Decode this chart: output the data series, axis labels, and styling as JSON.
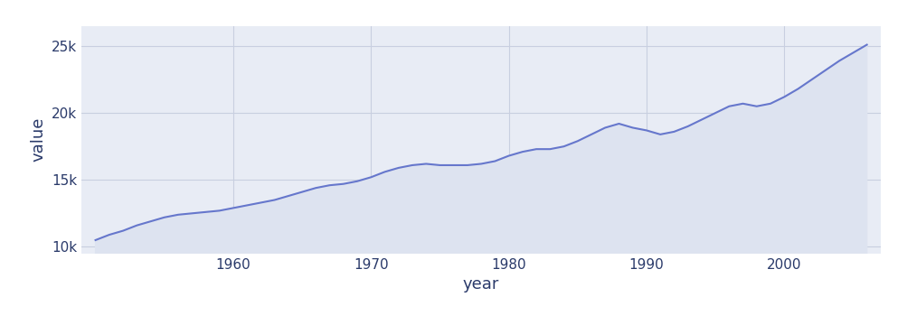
{
  "years": [
    1950,
    1951,
    1952,
    1953,
    1954,
    1955,
    1956,
    1957,
    1958,
    1959,
    1960,
    1961,
    1962,
    1963,
    1964,
    1965,
    1966,
    1967,
    1968,
    1969,
    1970,
    1971,
    1972,
    1973,
    1974,
    1975,
    1976,
    1977,
    1978,
    1979,
    1980,
    1981,
    1982,
    1983,
    1984,
    1985,
    1986,
    1987,
    1988,
    1989,
    1990,
    1991,
    1992,
    1993,
    1994,
    1995,
    1996,
    1997,
    1998,
    1999,
    2000,
    2001,
    2002,
    2003,
    2004,
    2005,
    2006
  ],
  "values": [
    10500,
    10900,
    11200,
    11600,
    11900,
    12200,
    12400,
    12500,
    12600,
    12700,
    12900,
    13100,
    13300,
    13500,
    13800,
    14100,
    14400,
    14600,
    14700,
    14900,
    15200,
    15600,
    15900,
    16100,
    16200,
    16100,
    16100,
    16100,
    16200,
    16400,
    16800,
    17100,
    17300,
    17300,
    17500,
    17900,
    18400,
    18900,
    19200,
    18900,
    18700,
    18400,
    18600,
    19000,
    19500,
    20000,
    20500,
    20700,
    20500,
    20700,
    21200,
    21800,
    22500,
    23200,
    23900,
    24500,
    25100
  ],
  "line_color": "#6677cc",
  "fill_color": "#dde3f0",
  "plot_bg_color": "#e8ecf5",
  "fig_bg_color": "#ffffff",
  "grid_color": "#c8cfe0",
  "xlabel": "year",
  "ylabel": "value",
  "xlabel_fontsize": 13,
  "ylabel_fontsize": 13,
  "tick_label_fontsize": 11,
  "tick_label_color": "#2a3a6a",
  "label_color": "#2a3a6a",
  "ylim": [
    9500,
    26500
  ],
  "xlim": [
    1949,
    2007
  ]
}
